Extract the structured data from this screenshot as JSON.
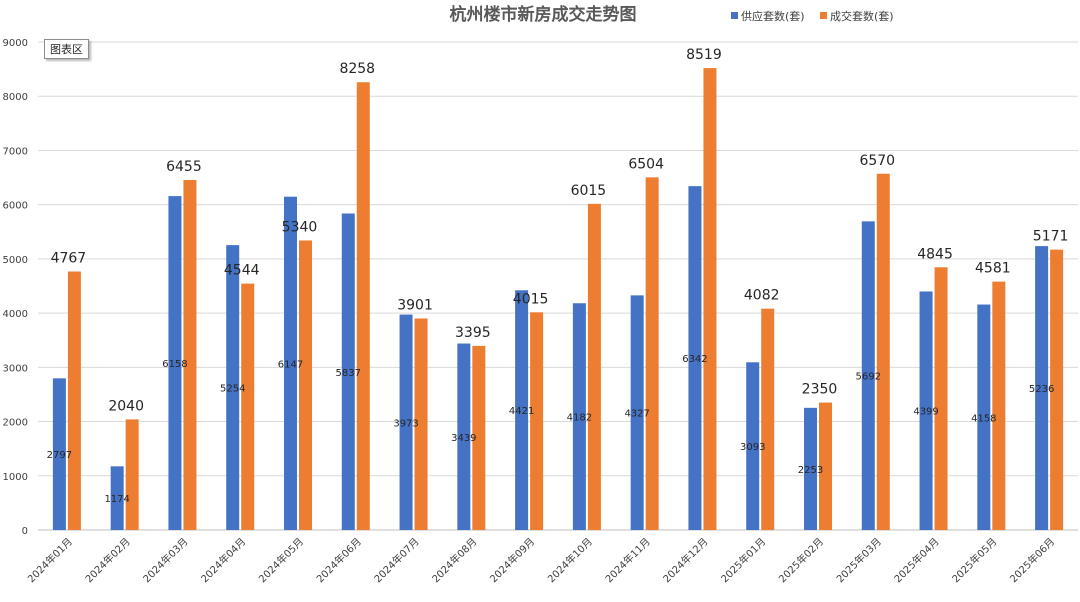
{
  "chart_area_badge": "图表区",
  "chart_data": {
    "type": "bar",
    "title": "杭州楼市新房成交走势图",
    "categories": [
      "2024年01月",
      "2024年02月",
      "2024年03月",
      "2024年04月",
      "2024年05月",
      "2024年06月",
      "2024年07月",
      "2024年08月",
      "2024年09月",
      "2024年10月",
      "2024年11月",
      "2024年12月",
      "2025年01月",
      "2025年02月",
      "2025年03月",
      "2025年04月",
      "2025年05月",
      "2025年06月"
    ],
    "series": [
      {
        "name": "供应套数(套)",
        "color": "#4472C4",
        "values": [
          2797,
          1174,
          6158,
          5254,
          6147,
          5837,
          3973,
          3439,
          4421,
          4182,
          4327,
          6342,
          3093,
          2253,
          5692,
          4399,
          4158,
          5236
        ]
      },
      {
        "name": "成交套数(套)",
        "color": "#ED7D31",
        "values": [
          4767,
          2040,
          6455,
          4544,
          5340,
          8258,
          3901,
          3395,
          4015,
          6015,
          6504,
          8519,
          4082,
          2350,
          6570,
          4845,
          4581,
          5171
        ]
      }
    ],
    "ylim": [
      0,
      9000
    ],
    "yticks": [
      0,
      1000,
      2000,
      3000,
      4000,
      5000,
      6000,
      7000,
      8000,
      9000
    ],
    "grid": true,
    "legend_position": "top-right"
  }
}
